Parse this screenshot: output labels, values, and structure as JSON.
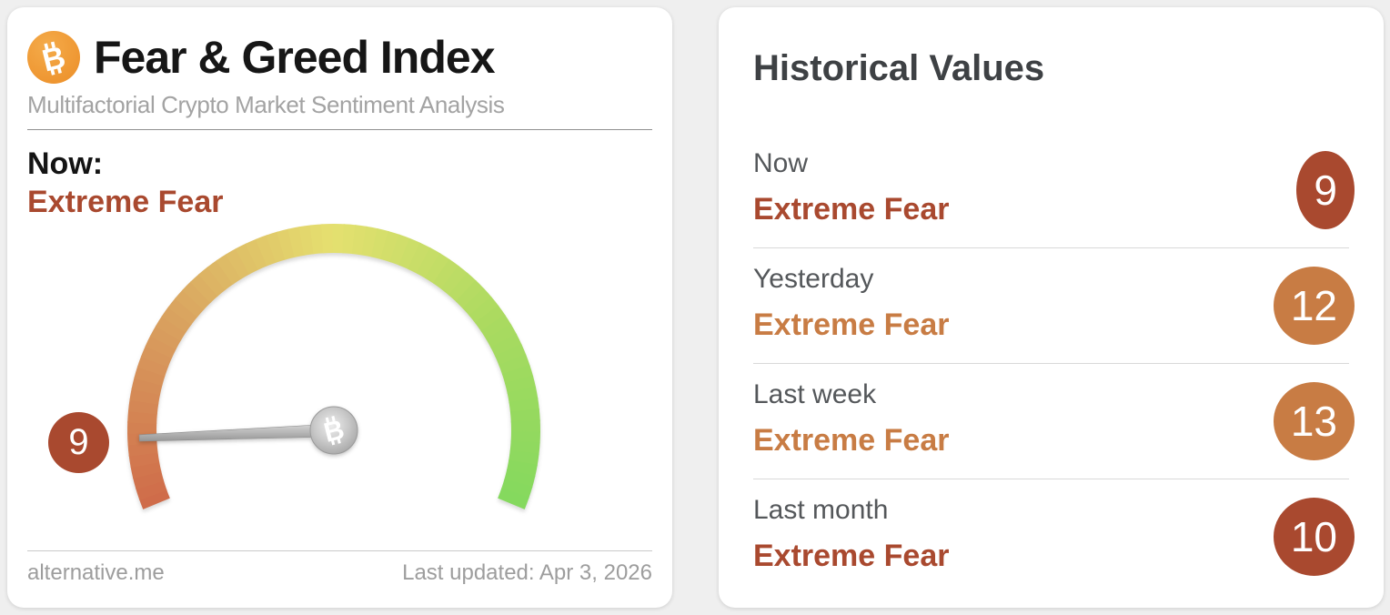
{
  "page": {
    "background": "#efefef"
  },
  "colors": {
    "extreme_fear_dark": "#a9492f",
    "extreme_fear_orange": "#c87c44",
    "bitcoin_orange": "#f09a36",
    "card_background": "#ffffff",
    "needle_gray": "#b3b3b3"
  },
  "icons": {
    "bitcoin_glyph": "B"
  },
  "gauge_card": {
    "title": "Fear & Greed Index",
    "subtitle": "Multifactorial Crypto Market Sentiment Analysis",
    "now_label": "Now:",
    "now_value": "Extreme Fear",
    "now_tone": "dark",
    "gauge_badge_value": "9",
    "footer_site": "alternative.me",
    "footer_updated": "Last updated: Apr 3, 2026"
  },
  "historical_card": {
    "title": "Historical Values",
    "rows": [
      {
        "label": "Now",
        "classification": "Extreme Fear",
        "value": "9",
        "tone": "dark"
      },
      {
        "label": "Yesterday",
        "classification": "Extreme Fear",
        "value": "12",
        "tone": "orange"
      },
      {
        "label": "Last week",
        "classification": "Extreme Fear",
        "value": "13",
        "tone": "orange"
      },
      {
        "label": "Last month",
        "classification": "Extreme Fear",
        "value": "10",
        "tone": "dark"
      }
    ]
  },
  "chart_data": {
    "type": "gauge",
    "title": "Fear & Greed Index",
    "value": 9,
    "min": 0,
    "max": 100,
    "classification": "Extreme Fear",
    "start_angle_deg": 202.5,
    "end_angle_deg": -22.5,
    "color_stops": [
      {
        "pos": 0.0,
        "color": "#cf6a49"
      },
      {
        "pos": 0.25,
        "color": "#d9a05f"
      },
      {
        "pos": 0.5,
        "color": "#e5e06f"
      },
      {
        "pos": 0.75,
        "color": "#aada60"
      },
      {
        "pos": 1.0,
        "color": "#84d95e"
      }
    ],
    "history": [
      {
        "label": "Now",
        "value": 9,
        "classification": "Extreme Fear"
      },
      {
        "label": "Yesterday",
        "value": 12,
        "classification": "Extreme Fear"
      },
      {
        "label": "Last week",
        "value": 13,
        "classification": "Extreme Fear"
      },
      {
        "label": "Last month",
        "value": 10,
        "classification": "Extreme Fear"
      }
    ]
  }
}
